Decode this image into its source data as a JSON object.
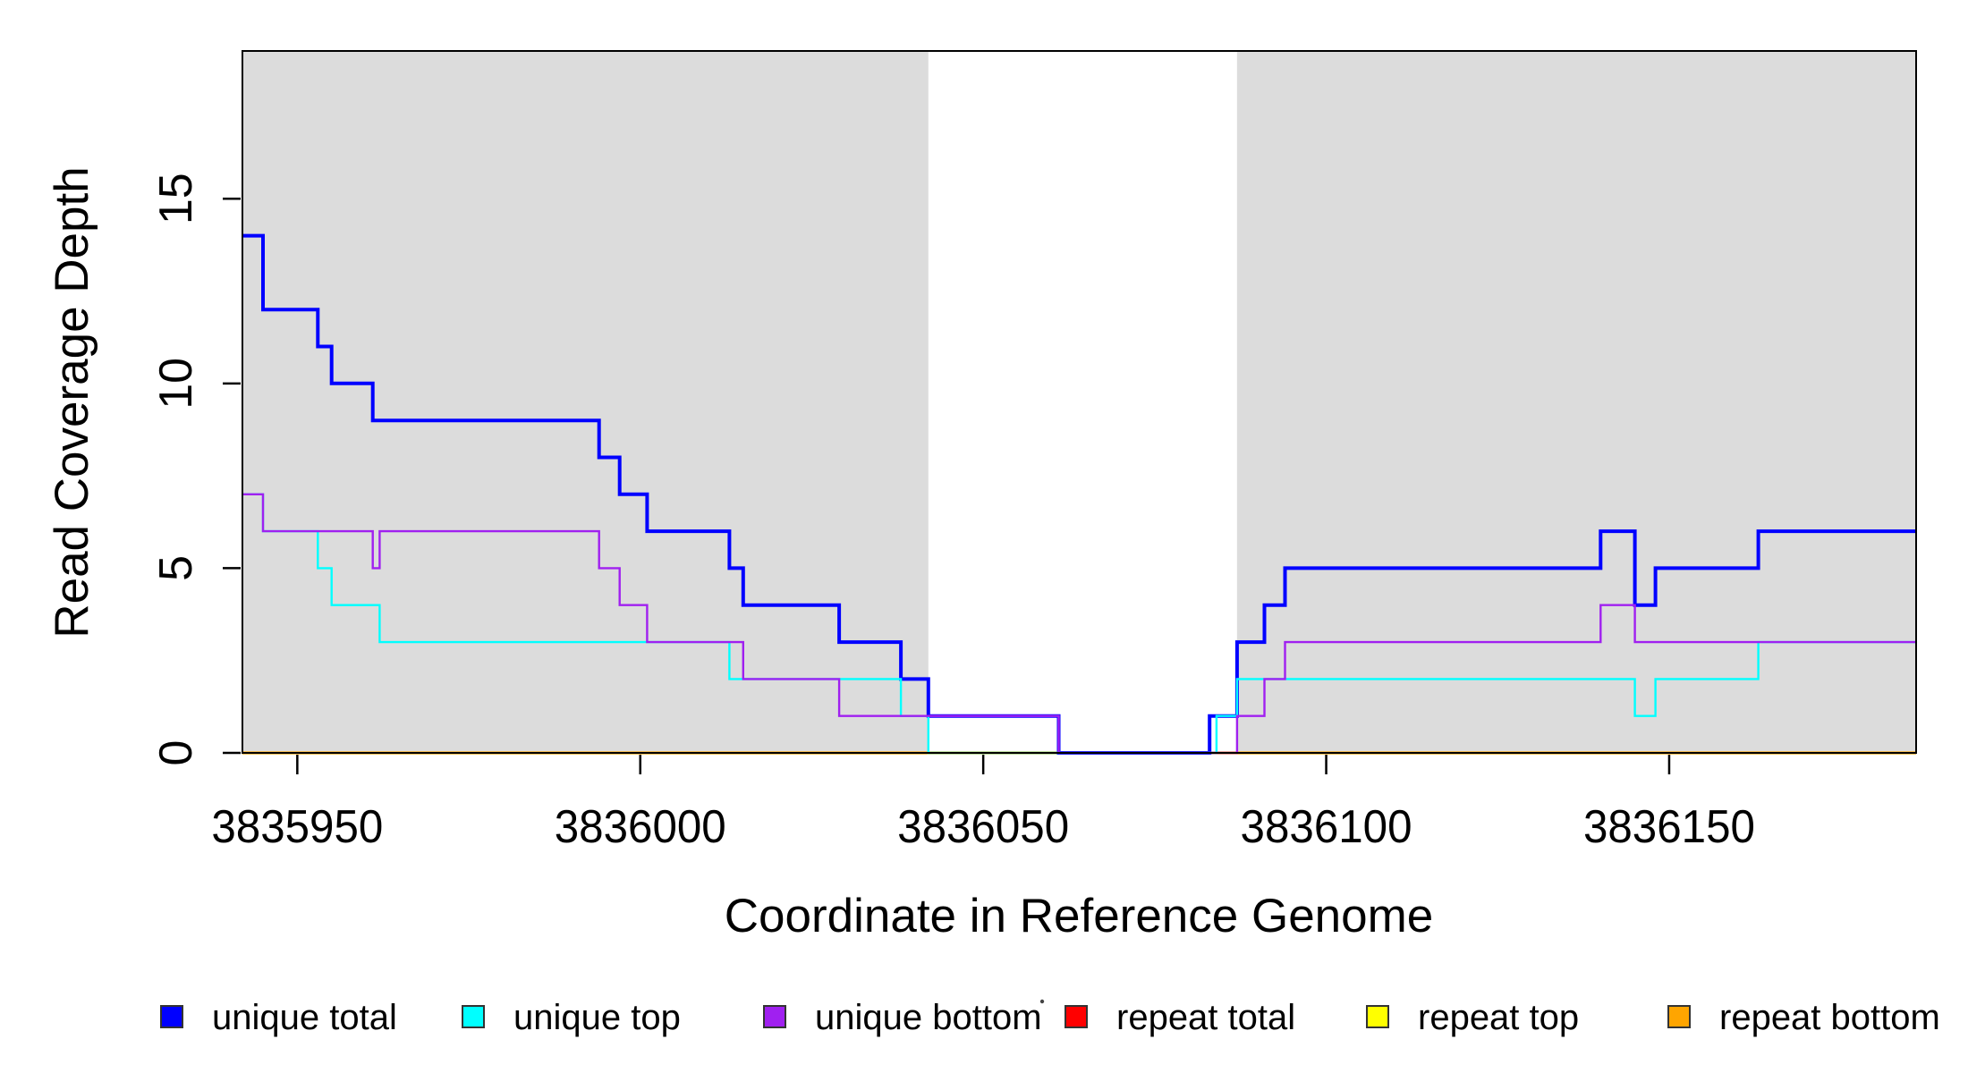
{
  "chart_data": {
    "type": "line",
    "subtype": "step-post",
    "title": "",
    "xlabel": "Coordinate in Reference Genome",
    "ylabel": "Read Coverage Depth",
    "xlim": [
      3835942,
      3836186
    ],
    "ylim": [
      0,
      19
    ],
    "x_ticks": [
      3835950,
      3836000,
      3836050,
      3836100,
      3836150
    ],
    "y_ticks": [
      0,
      5,
      10,
      15
    ],
    "grid": false,
    "background_color": "#FFFFFF",
    "plot_box_color": "#000000",
    "shaded_regions": [
      {
        "name": "gray-region-left",
        "x_start": 3835942,
        "x_end": 3836042,
        "color": "#DCDCDC"
      },
      {
        "name": "gray-region-right",
        "x_start": 3836087,
        "x_end": 3836186,
        "color": "#DCDCDC"
      }
    ],
    "series": [
      {
        "name": "repeat total",
        "color": "#FF0000",
        "line_width": 2.4,
        "steps": [
          [
            3835942,
            0
          ]
        ]
      },
      {
        "name": "repeat top",
        "color": "#FFFF00",
        "line_width": 2.4,
        "steps": [
          [
            3835942,
            0
          ]
        ]
      },
      {
        "name": "repeat bottom",
        "color": "#FFA500",
        "line_width": 3.2,
        "steps": [
          [
            3835942,
            0
          ]
        ]
      },
      {
        "name": "unique total",
        "color": "#0000FF",
        "line_width": 4,
        "steps": [
          [
            3835942,
            14
          ],
          [
            3835945,
            12
          ],
          [
            3835953,
            11
          ],
          [
            3835955,
            10
          ],
          [
            3835961,
            9
          ],
          [
            3835994,
            8
          ],
          [
            3835997,
            7
          ],
          [
            3836001,
            6
          ],
          [
            3836013,
            5
          ],
          [
            3836015,
            4
          ],
          [
            3836029,
            3
          ],
          [
            3836038,
            2
          ],
          [
            3836042,
            1
          ],
          [
            3836061,
            0
          ],
          [
            3836083,
            1
          ],
          [
            3836087,
            3
          ],
          [
            3836091,
            4
          ],
          [
            3836094,
            5
          ],
          [
            3836140,
            6
          ],
          [
            3836145,
            4
          ],
          [
            3836148,
            5
          ],
          [
            3836163,
            6
          ]
        ]
      },
      {
        "name": "unique top",
        "color": "#00FFFF",
        "line_width": 2.4,
        "steps": [
          [
            3835942,
            7
          ],
          [
            3835945,
            6
          ],
          [
            3835953,
            5
          ],
          [
            3835955,
            4
          ],
          [
            3835962,
            3
          ],
          [
            3836013,
            2
          ],
          [
            3836038,
            1
          ],
          [
            3836042,
            0
          ],
          [
            3836084,
            1
          ],
          [
            3836087,
            2
          ],
          [
            3836145,
            1
          ],
          [
            3836148,
            2
          ],
          [
            3836163,
            3
          ]
        ]
      },
      {
        "name": "unique bottom",
        "color": "#A020F0",
        "line_width": 2.4,
        "steps": [
          [
            3835942,
            7
          ],
          [
            3835945,
            6
          ],
          [
            3835961,
            5
          ],
          [
            3835962,
            6
          ],
          [
            3835994,
            5
          ],
          [
            3835997,
            4
          ],
          [
            3836001,
            3
          ],
          [
            3836015,
            2
          ],
          [
            3836029,
            1
          ],
          [
            3836061,
            0
          ],
          [
            3836087,
            1
          ],
          [
            3836091,
            2
          ],
          [
            3836094,
            3
          ],
          [
            3836140,
            4
          ],
          [
            3836145,
            3
          ]
        ]
      }
    ],
    "legend": {
      "position": "bottom",
      "items": [
        {
          "label": "unique total",
          "color": "#0000FF"
        },
        {
          "label": "unique top",
          "color": "#00FFFF"
        },
        {
          "label": "unique bottom",
          "color": "#A020F0"
        },
        {
          "label": "repeat total",
          "color": "#FF0000"
        },
        {
          "label": "repeat top",
          "color": "#FFFF00"
        },
        {
          "label": "repeat bottom",
          "color": "#FFA500"
        }
      ]
    }
  }
}
